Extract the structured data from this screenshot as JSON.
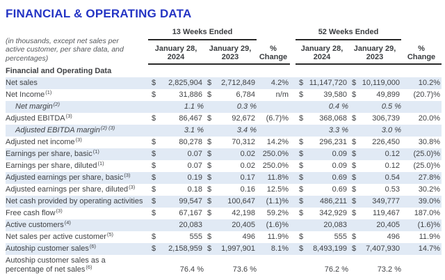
{
  "title": "FINANCIAL & OPERATING DATA",
  "colors": {
    "title_blue": "#2434c4",
    "row_shade": "#e1eaf5",
    "rule": "#2a2a2a"
  },
  "table": {
    "note": "(in thousands, except net sales per active customer, per share data, and percentages)",
    "groups": {
      "g1": "13 Weeks Ended",
      "g2": "52 Weeks Ended"
    },
    "col_headers": [
      {
        "l1": "January 28,",
        "l2": "2024"
      },
      {
        "l1": "January 29,",
        "l2": "2023"
      },
      {
        "l1": "%",
        "l2": "Change"
      },
      {
        "l1": "January 28,",
        "l2": "2024"
      },
      {
        "l1": "January 29,",
        "l2": "2023"
      },
      {
        "l1": "%",
        "l2": "Change"
      }
    ],
    "section_header": "Financial and Operating Data",
    "rows": [
      {
        "label": "Net sales",
        "sup": "",
        "style": "",
        "cells": [
          {
            "t": "d",
            "v": "2,825,904"
          },
          {
            "t": "d",
            "v": "2,712,849"
          },
          {
            "t": "c",
            "v": "4.2%"
          },
          {
            "t": "d",
            "v": "11,147,720"
          },
          {
            "t": "d",
            "v": "10,119,000"
          },
          {
            "t": "c",
            "v": "10.2%"
          }
        ]
      },
      {
        "label": "Net Income",
        "sup": "(1)",
        "style": "",
        "cells": [
          {
            "t": "d",
            "v": "31,886"
          },
          {
            "t": "d",
            "v": "6,784"
          },
          {
            "t": "c",
            "v": "n/m"
          },
          {
            "t": "d",
            "v": "39,580"
          },
          {
            "t": "d",
            "v": "49,899"
          },
          {
            "t": "c",
            "v": "(20.7)%"
          }
        ]
      },
      {
        "label": "Net margin",
        "sup": "(2)",
        "style": "margin",
        "cells": [
          {
            "t": "p",
            "v": "1.1 %"
          },
          {
            "t": "p",
            "v": "0.3 %"
          },
          null,
          {
            "t": "p",
            "v": "0.4 %"
          },
          {
            "t": "p",
            "v": "0.5 %"
          },
          null
        ]
      },
      {
        "label": "Adjusted EBITDA",
        "sup": "(3)",
        "style": "",
        "cells": [
          {
            "t": "d",
            "v": "86,467"
          },
          {
            "t": "d",
            "v": "92,672"
          },
          {
            "t": "c",
            "v": "(6.7)%"
          },
          {
            "t": "d",
            "v": "368,068"
          },
          {
            "t": "d",
            "v": "306,739"
          },
          {
            "t": "c",
            "v": "20.0%"
          }
        ]
      },
      {
        "label": "Adjusted EBITDA margin",
        "sup": "(2) (3)",
        "style": "margin",
        "cells": [
          {
            "t": "p",
            "v": "3.1 %"
          },
          {
            "t": "p",
            "v": "3.4 %"
          },
          null,
          {
            "t": "p",
            "v": "3.3 %"
          },
          {
            "t": "p",
            "v": "3.0 %"
          },
          null
        ]
      },
      {
        "label": "Adjusted net income",
        "sup": "(3)",
        "style": "",
        "cells": [
          {
            "t": "d",
            "v": "80,278"
          },
          {
            "t": "d",
            "v": "70,312"
          },
          {
            "t": "c",
            "v": "14.2%"
          },
          {
            "t": "d",
            "v": "296,231"
          },
          {
            "t": "d",
            "v": "226,450"
          },
          {
            "t": "c",
            "v": "30.8%"
          }
        ]
      },
      {
        "label": "Earnings per share, basic",
        "sup": "(1)",
        "style": "",
        "cells": [
          {
            "t": "d",
            "v": "0.07"
          },
          {
            "t": "d",
            "v": "0.02"
          },
          {
            "t": "c",
            "v": "250.0%"
          },
          {
            "t": "d",
            "v": "0.09"
          },
          {
            "t": "d",
            "v": "0.12"
          },
          {
            "t": "c",
            "v": "(25.0)%"
          }
        ]
      },
      {
        "label": "Earnings per share, diluted",
        "sup": "(1)",
        "style": "",
        "cells": [
          {
            "t": "d",
            "v": "0.07"
          },
          {
            "t": "d",
            "v": "0.02"
          },
          {
            "t": "c",
            "v": "250.0%"
          },
          {
            "t": "d",
            "v": "0.09"
          },
          {
            "t": "d",
            "v": "0.12"
          },
          {
            "t": "c",
            "v": "(25.0)%"
          }
        ]
      },
      {
        "label": "Adjusted earnings per share, basic",
        "sup": "(3)",
        "style": "",
        "cells": [
          {
            "t": "d",
            "v": "0.19"
          },
          {
            "t": "d",
            "v": "0.17"
          },
          {
            "t": "c",
            "v": "11.8%"
          },
          {
            "t": "d",
            "v": "0.69"
          },
          {
            "t": "d",
            "v": "0.54"
          },
          {
            "t": "c",
            "v": "27.8%"
          }
        ]
      },
      {
        "label": "Adjusted earnings per share, diluted",
        "sup": "(3)",
        "style": "",
        "cells": [
          {
            "t": "d",
            "v": "0.18"
          },
          {
            "t": "d",
            "v": "0.16"
          },
          {
            "t": "c",
            "v": "12.5%"
          },
          {
            "t": "d",
            "v": "0.69"
          },
          {
            "t": "d",
            "v": "0.53"
          },
          {
            "t": "c",
            "v": "30.2%"
          }
        ]
      },
      {
        "label": "Net cash provided by operating activities",
        "sup": "",
        "style": "",
        "cells": [
          {
            "t": "d",
            "v": "99,547"
          },
          {
            "t": "d",
            "v": "100,647"
          },
          {
            "t": "c",
            "v": "(1.1)%"
          },
          {
            "t": "d",
            "v": "486,211"
          },
          {
            "t": "d",
            "v": "349,777"
          },
          {
            "t": "c",
            "v": "39.0%"
          }
        ]
      },
      {
        "label": "Free cash flow",
        "sup": "(3)",
        "style": "",
        "cells": [
          {
            "t": "d",
            "v": "67,167"
          },
          {
            "t": "d",
            "v": "42,198"
          },
          {
            "t": "c",
            "v": "59.2%"
          },
          {
            "t": "d",
            "v": "342,929"
          },
          {
            "t": "d",
            "v": "119,467"
          },
          {
            "t": "c",
            "v": "187.0%"
          }
        ]
      },
      {
        "label": "Active customers",
        "sup": "(4)",
        "style": "",
        "cells": [
          {
            "t": "n",
            "v": "20,083"
          },
          {
            "t": "n",
            "v": "20,405"
          },
          {
            "t": "c",
            "v": "(1.6)%"
          },
          {
            "t": "n",
            "v": "20,083"
          },
          {
            "t": "n",
            "v": "20,405"
          },
          {
            "t": "c",
            "v": "(1.6)%"
          }
        ]
      },
      {
        "label": "Net sales per active customer",
        "sup": "(5)",
        "style": "",
        "cells": [
          {
            "t": "d",
            "v": "555"
          },
          {
            "t": "d",
            "v": "496"
          },
          {
            "t": "c",
            "v": "11.9%"
          },
          {
            "t": "d",
            "v": "555"
          },
          {
            "t": "d",
            "v": "496"
          },
          {
            "t": "c",
            "v": "11.9%"
          }
        ]
      },
      {
        "label": "Autoship customer sales",
        "sup": "(6)",
        "style": "",
        "cells": [
          {
            "t": "d",
            "v": "2,158,959"
          },
          {
            "t": "d",
            "v": "1,997,901"
          },
          {
            "t": "c",
            "v": "8.1%"
          },
          {
            "t": "d",
            "v": "8,493,199"
          },
          {
            "t": "d",
            "v": "7,407,930"
          },
          {
            "t": "c",
            "v": "14.7%"
          }
        ]
      },
      {
        "label": "Autoship customer sales as a percentage of net sales",
        "sup": "(6)",
        "style": "tall",
        "cells": [
          {
            "t": "p",
            "v": "76.4 %"
          },
          {
            "t": "p",
            "v": "73.6 %"
          },
          null,
          {
            "t": "p",
            "v": "76.2 %"
          },
          {
            "t": "p",
            "v": "73.2 %"
          },
          null
        ]
      }
    ]
  }
}
